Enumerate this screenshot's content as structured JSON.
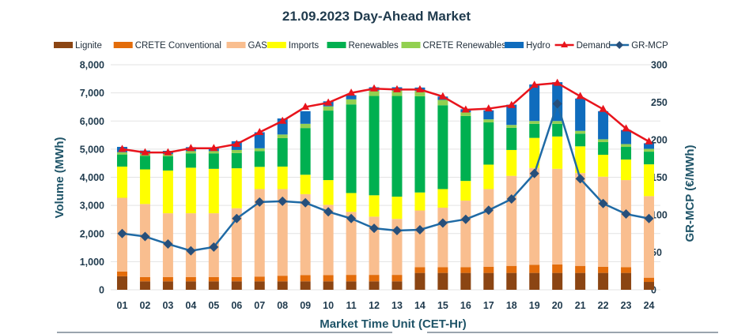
{
  "chart_data": {
    "type": "bar",
    "subtype": "stacked-bar-with-lines",
    "title": "21.09.2023  Day-Ahead Market",
    "xlabel": "Market Time Unit (CET-Hr)",
    "ylabel": "Volume (MWh)",
    "y2label": "GR-MCP (€/MWh)",
    "ylim": [
      0,
      8000
    ],
    "y2lim": [
      0,
      300
    ],
    "yticks": [
      "0",
      "1,000",
      "2,000",
      "3,000",
      "4,000",
      "5,000",
      "6,000",
      "7,000",
      "8,000"
    ],
    "y2ticks": [
      "0",
      "50",
      "100",
      "150",
      "200",
      "250",
      "300"
    ],
    "grid": true,
    "legend_position": "top",
    "categories": [
      "01",
      "02",
      "03",
      "04",
      "05",
      "06",
      "07",
      "08",
      "09",
      "10",
      "11",
      "12",
      "13",
      "14",
      "15",
      "16",
      "17",
      "18",
      "19",
      "20",
      "21",
      "22",
      "23",
      "24"
    ],
    "series": [
      {
        "name": "Lignite",
        "kind": "bar",
        "color": "#8b4513",
        "values": [
          480,
          300,
          300,
          300,
          300,
          300,
          300,
          300,
          300,
          300,
          300,
          300,
          300,
          600,
          600,
          600,
          600,
          600,
          600,
          600,
          600,
          600,
          600,
          280
        ]
      },
      {
        "name": "CRETE Conventional",
        "kind": "bar",
        "color": "#e36c0a",
        "values": [
          170,
          150,
          150,
          150,
          150,
          150,
          170,
          200,
          220,
          220,
          230,
          230,
          230,
          200,
          200,
          200,
          220,
          250,
          290,
          300,
          250,
          220,
          200,
          150
        ]
      },
      {
        "name": "GAS",
        "kind": "bar",
        "color": "#f9be8f",
        "values": [
          2620,
          2600,
          2270,
          2270,
          2270,
          2450,
          3110,
          3080,
          2880,
          2500,
          2240,
          2070,
          1990,
          2020,
          2120,
          2370,
          2760,
          3200,
          3440,
          3400,
          3300,
          3200,
          3100,
          2900
        ]
      },
      {
        "name": "Imports",
        "kind": "bar",
        "color": "#ffff00",
        "values": [
          1110,
          1230,
          1520,
          1620,
          1580,
          1420,
          790,
          800,
          690,
          880,
          670,
          760,
          790,
          640,
          660,
          700,
          870,
          920,
          1070,
          1150,
          950,
          780,
          730,
          1130
        ]
      },
      {
        "name": "Renewables",
        "kind": "bar",
        "color": "#00b050",
        "values": [
          430,
          480,
          510,
          510,
          550,
          540,
          560,
          1010,
          1660,
          2470,
          3150,
          3530,
          3580,
          3420,
          2980,
          2310,
          1500,
          790,
          500,
          450,
          450,
          450,
          450,
          450
        ]
      },
      {
        "name": "CRETE Renewables",
        "kind": "bar",
        "color": "#92d050",
        "values": [
          80,
          80,
          80,
          80,
          80,
          110,
          100,
          130,
          150,
          150,
          180,
          190,
          190,
          190,
          190,
          130,
          110,
          100,
          100,
          100,
          100,
          100,
          100,
          100
        ]
      },
      {
        "name": "Hydro",
        "kind": "bar",
        "color": "#0f6cbd",
        "values": [
          190,
          110,
          110,
          140,
          120,
          310,
          570,
          570,
          450,
          180,
          150,
          120,
          120,
          120,
          120,
          110,
          320,
          720,
          1300,
          1380,
          1150,
          1000,
          500,
          200
        ]
      },
      {
        "name": "Demand",
        "kind": "line",
        "axis": "left",
        "color": "#e8141c",
        "marker": "triangle",
        "values": [
          5000,
          4880,
          4880,
          5030,
          5030,
          5180,
          5600,
          6000,
          6500,
          6650,
          7000,
          7150,
          7120,
          7120,
          6870,
          6400,
          6440,
          6560,
          7280,
          7350,
          6880,
          6420,
          5730,
          5270
        ]
      },
      {
        "name": "GR-MCP",
        "kind": "line",
        "axis": "right",
        "color": "#1f6aa5",
        "marker": "diamond",
        "marker_color": "#274f7a",
        "values": [
          75,
          71,
          61,
          52,
          57,
          95,
          117,
          118,
          116,
          104,
          95,
          82,
          79,
          80,
          89,
          94,
          106,
          121,
          155,
          248,
          148,
          115,
          101,
          95
        ]
      }
    ]
  },
  "colors": {
    "text": "#1f3a4d",
    "axis_title": "#1f5468",
    "grid": "#e3e3e3"
  }
}
